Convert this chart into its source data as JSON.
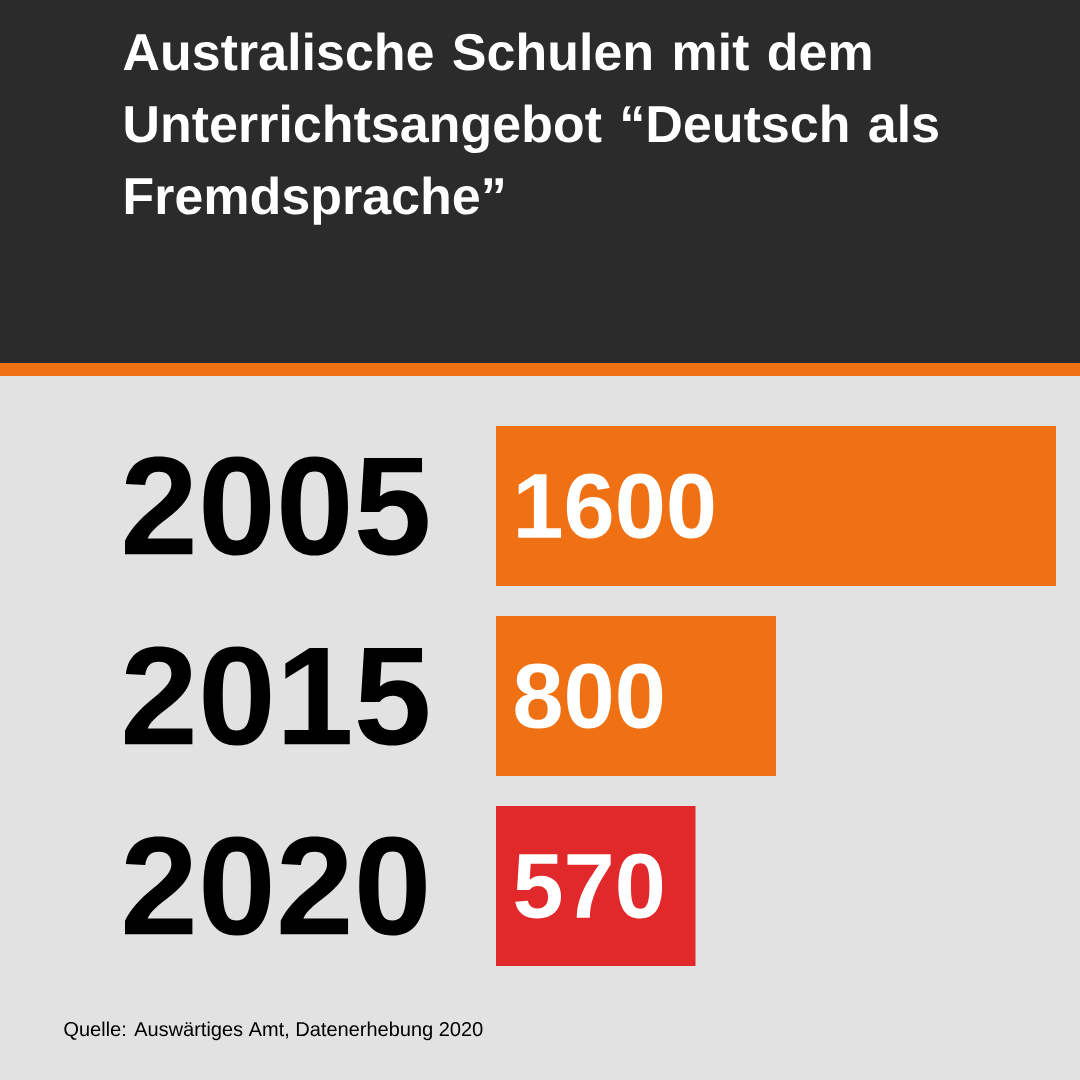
{
  "chart_data": {
    "type": "bar",
    "orientation": "horizontal",
    "title": "Australische Schulen mit dem Unterrichtsangebot “Deutsch als Fremdsprache”",
    "categories": [
      "2005",
      "2015",
      "2020"
    ],
    "values": [
      1600,
      800,
      570
    ],
    "colors": [
      "#f07014",
      "#f07014",
      "#e1282a"
    ],
    "data_labels": true,
    "annotations": [
      "Quelle: Auswärtiges Amt, Datenerhebung 2020"
    ]
  }
}
